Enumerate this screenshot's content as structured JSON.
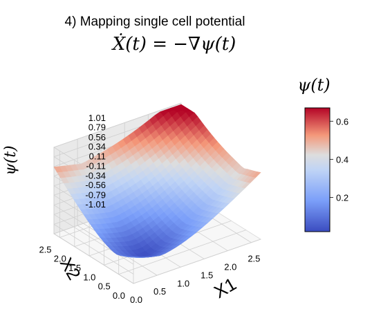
{
  "chart_data": {
    "type": "surface3d",
    "title": "4) Mapping single cell potential",
    "subtitle": "Ẋ(t) = −∇ψ(t)",
    "xlabel": "X1",
    "ylabel": "X2",
    "zlabel": "ψ(t)",
    "x_ticks": [
      "0.0",
      "0.5",
      "1.0",
      "1.5",
      "2.0",
      "2.5"
    ],
    "y_ticks": [
      "0.0",
      "0.5",
      "1.0",
      "1.5",
      "2.0",
      "2.5"
    ],
    "z_ticks": [
      "1.01",
      "0.79",
      "0.56",
      "0.34",
      "0.11",
      "-0.11",
      "-0.34",
      "-0.56",
      "-0.79",
      "-1.01"
    ],
    "xlim": [
      0,
      2.7
    ],
    "ylim": [
      0,
      2.7
    ],
    "zlim": [
      -1.01,
      1.01
    ],
    "colorbar": {
      "label": "ψ(t)",
      "ticks": [
        "0.6",
        "0.4",
        "0.2"
      ],
      "range": [
        0.02,
        0.67
      ],
      "colormap": "coolwarm"
    },
    "surface_description": "Basin with minimum near (0.6, 0.6) at ψ≈0.02; ψ rises to ≈0.67 at the four corners of the grid",
    "grid": true
  },
  "colors": {
    "low": "#3b4cc0",
    "mid": "#dddddd",
    "high": "#b40426",
    "pane": "#f2f2f2",
    "gridline": "#cfcfcf"
  }
}
